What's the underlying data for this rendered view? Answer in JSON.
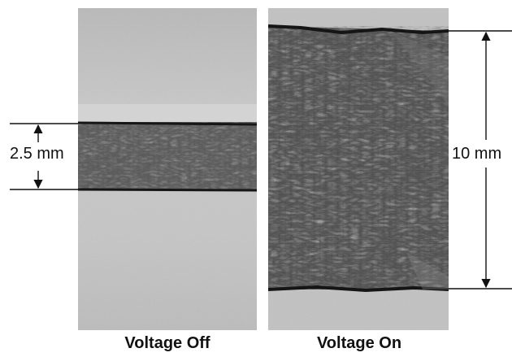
{
  "panels": {
    "off": {
      "caption": "Voltage Off",
      "dimension_label": "2.5 mm"
    },
    "on": {
      "caption": "Voltage On",
      "dimension_label": "10 mm"
    }
  },
  "colors": {
    "background_gray": "#c4c4c4",
    "film_dark": "#4a4a4a",
    "edge_black": "#1a1a1a",
    "annotation": "#111111"
  }
}
